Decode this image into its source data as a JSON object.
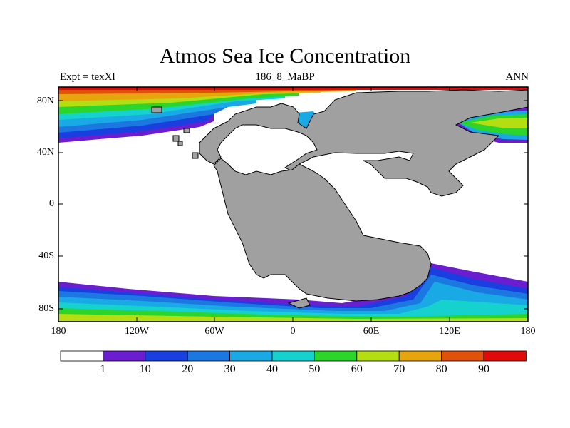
{
  "title": "Atmos Sea Ice Concentration",
  "subtitle_left": "Expt = texXl",
  "subtitle_center": "186_8_MaBP",
  "subtitle_right": "ANN",
  "latitude_labels": [
    "80N",
    "40N",
    "0",
    "40S",
    "80S"
  ],
  "longitude_labels": [
    "180",
    "120W",
    "60W",
    "0",
    "60E",
    "120E",
    "180"
  ],
  "colorbar": {
    "levels": [
      "1",
      "10",
      "20",
      "30",
      "40",
      "50",
      "60",
      "70",
      "80",
      "90"
    ],
    "colors": [
      "#ffffff",
      "#6a1ed0",
      "#1a3fe0",
      "#1b78e0",
      "#19aae6",
      "#16d2cf",
      "#2bd52b",
      "#b4dd12",
      "#e6a50c",
      "#e0520c",
      "#e00a0a"
    ]
  },
  "land_color": "#a0a0a0",
  "ocean_color": "#ffffff"
}
